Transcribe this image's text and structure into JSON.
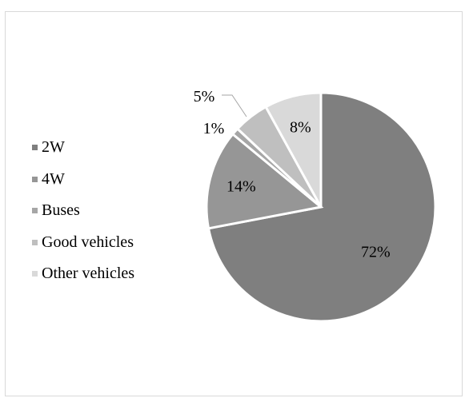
{
  "chart_data": {
    "type": "pie",
    "title": "",
    "slices": [
      {
        "label": "2W",
        "value": 72,
        "display": "72%",
        "color": "#7f7f7f"
      },
      {
        "label": "4W",
        "value": 14,
        "display": "14%",
        "color": "#969696"
      },
      {
        "label": "Buses",
        "value": 1,
        "display": "1%",
        "color": "#a6a6a6"
      },
      {
        "label": "Good vehicles",
        "value": 5,
        "display": "5%",
        "color": "#bfbfbf"
      },
      {
        "label": "Other vehicles",
        "value": 8,
        "display": "8%",
        "color": "#d9d9d9"
      }
    ],
    "legend_position": "left"
  }
}
